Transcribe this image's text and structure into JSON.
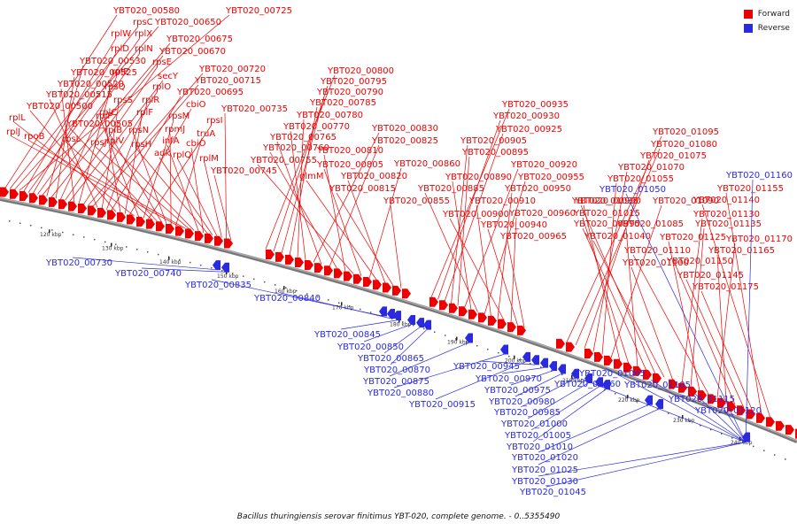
{
  "caption": "Bacillus thuringiensis serovar finitimus YBT-020, complete genome. - 0..5355490",
  "legend": [
    {
      "label": "Forward",
      "color": "#ee0000"
    },
    {
      "label": "Reverse",
      "color": "#2a2ae0"
    }
  ],
  "ticks": [
    "120 kbp",
    "130 kbp",
    "140 kbp",
    "150 kbp",
    "160 kbp",
    "170 kbp",
    "180 kbp",
    "190 kbp",
    "200 kbp",
    "210 kbp",
    "220 kbp",
    "230 kbp",
    "240 kbp"
  ],
  "forward_labels": [
    "YBT020_00580",
    "rpsC",
    "YBT020_00650",
    "YBT020_00725",
    "rplW",
    "rplX",
    "rplD",
    "rplN",
    "YBT020_00675",
    "YBT020_00530",
    "YBT020_00670",
    "YBT020_00525",
    "rplE",
    "rpsE",
    "secY",
    "YBT020_00520",
    "rpsQ",
    "rplO",
    "YBT020_00720",
    "YBT020_00715",
    "YBT020_00515",
    "rpsS",
    "rplR",
    "YBT020_00695",
    "YBT020_00500",
    "rplC",
    "rplF",
    "cbiO",
    "rplL",
    "rplP",
    "rpsM",
    "rpsI",
    "rpsL",
    "YBT020_00505",
    "rplB",
    "rpsN",
    "rpmJ",
    "truA",
    "rplJ",
    "rpoB",
    "rpsJ",
    "rplV",
    "infA",
    "cbiO",
    "rpsH",
    "adk",
    "rplQ",
    "rplM",
    "YBT020_00735",
    "YBT020_00745",
    "YBT020_00800",
    "YBT020_00795",
    "YBT020_00790",
    "YBT020_00785",
    "YBT020_00780",
    "YBT020_00770",
    "YBT020_00830",
    "YBT020_00765",
    "YBT020_00825",
    "YBT020_00760",
    "YBT020_00810",
    "YBT020_00755",
    "YBT020_00805",
    "YBT020_00860",
    "glmM",
    "YBT020_00820",
    "YBT020_00815",
    "YBT020_00855",
    "YBT020_00935",
    "YBT020_00930",
    "YBT020_00925",
    "YBT020_00905",
    "YBT020_00895",
    "YBT020_00920",
    "YBT020_00890",
    "YBT020_00885",
    "YBT020_00955",
    "YBT020_00910",
    "YBT020_00950",
    "YBT020_00900",
    "YBT020_00960",
    "YBT020_00940",
    "YBT020_00965",
    "YBT020_01095",
    "YBT020_01080",
    "YBT020_01075",
    "YBT020_01070",
    "YBT020_01055",
    "YBT020_01090",
    "YBT020_00990",
    "YBT020_01015",
    "YBT020_01085",
    "YBT020_00995",
    "YBT020_01035",
    "YBT020_01040",
    "YBT020_01100",
    "YBT020_01130",
    "YBT020_01135",
    "YBT020_01125",
    "YBT020_01110",
    "YBT020_01170",
    "YBT020_01165",
    "YBT020_01150",
    "YBT020_01145",
    "YBT020_01175",
    "YBT020_01155",
    "YBT020_01140"
  ],
  "reverse_labels": [
    "YBT020_00730",
    "YBT020_00740",
    "YBT020_00835",
    "YBT020_00840",
    "YBT020_00845",
    "YBT020_00850",
    "YBT020_00865",
    "YBT020_00870",
    "YBT020_00875",
    "YBT020_00880",
    "YBT020_00915",
    "YBT020_00945",
    "YBT020_00970",
    "YBT020_00975",
    "YBT020_00980",
    "YBT020_00985",
    "YBT020_01000",
    "YBT020_01005",
    "YBT020_01010",
    "YBT020_01020",
    "YBT020_01025",
    "YBT020_01030",
    "YBT020_01045",
    "YBT020_01060",
    "YBT020_01065",
    "YBT020_01105",
    "YBT020_01115",
    "YBT020_01120",
    "YBT020_01050",
    "YBT020_01160"
  ]
}
